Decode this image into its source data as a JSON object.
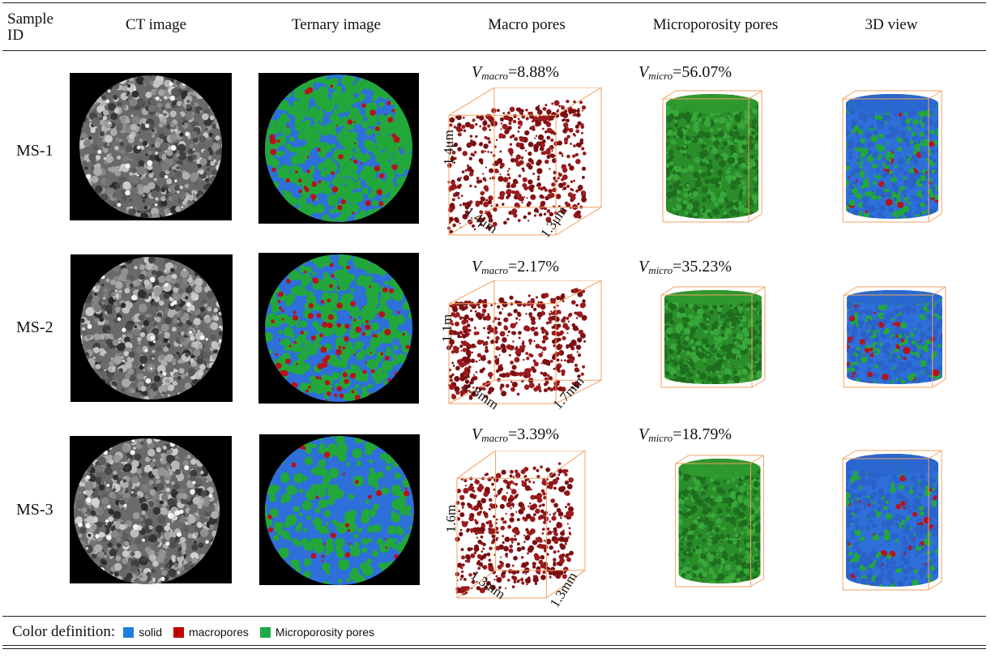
{
  "header": {
    "sample_id": "Sample ID",
    "ct_image": "CT image",
    "ternary_image": "Ternary image",
    "macro_pores": "Macro pores",
    "micro_pores": "Microporosity pores",
    "view_3d": "3D view"
  },
  "colors": {
    "solid": "#2e6fd9",
    "macropores": "#b5141a",
    "micro": "#22a83a",
    "macro_render": "#7a0f12",
    "micro_render": "#2a8d2a",
    "box_edge": "#f0a060"
  },
  "rows": [
    {
      "id": "MS-1",
      "v_macro_symbol": "V",
      "v_macro_sub": "macro",
      "v_macro_value": "=8.88%",
      "v_micro_symbol": "V",
      "v_micro_sub": "micro",
      "v_micro_value": "=56.07%",
      "dim_height": "1.4μm",
      "dim_left": "1.4μm",
      "dim_right": "1.3μm"
    },
    {
      "id": "MS-2",
      "v_macro_symbol": "V",
      "v_macro_sub": "macro",
      "v_macro_value": "=2.17%",
      "v_micro_symbol": "V",
      "v_micro_sub": "micro",
      "v_micro_value": "=35.23%",
      "dim_height": "1.1m",
      "dim_left": "1.8mm",
      "dim_right": "1.7mm"
    },
    {
      "id": "MS-3",
      "v_macro_symbol": "V",
      "v_macro_sub": "macro",
      "v_macro_value": "=3.39%",
      "v_micro_symbol": "V",
      "v_micro_sub": "micro",
      "v_micro_value": "=18.79%",
      "dim_height": "1.6m",
      "dim_left": "1.3mm",
      "dim_right": "1.3mm"
    }
  ],
  "legend": {
    "title": "Color definition:",
    "items": [
      {
        "label": "solid",
        "color": "#1e7fe0"
      },
      {
        "label": "macropores",
        "color": "#c00000"
      },
      {
        "label": "Microporosity pores",
        "color": "#1faa4a"
      }
    ]
  }
}
